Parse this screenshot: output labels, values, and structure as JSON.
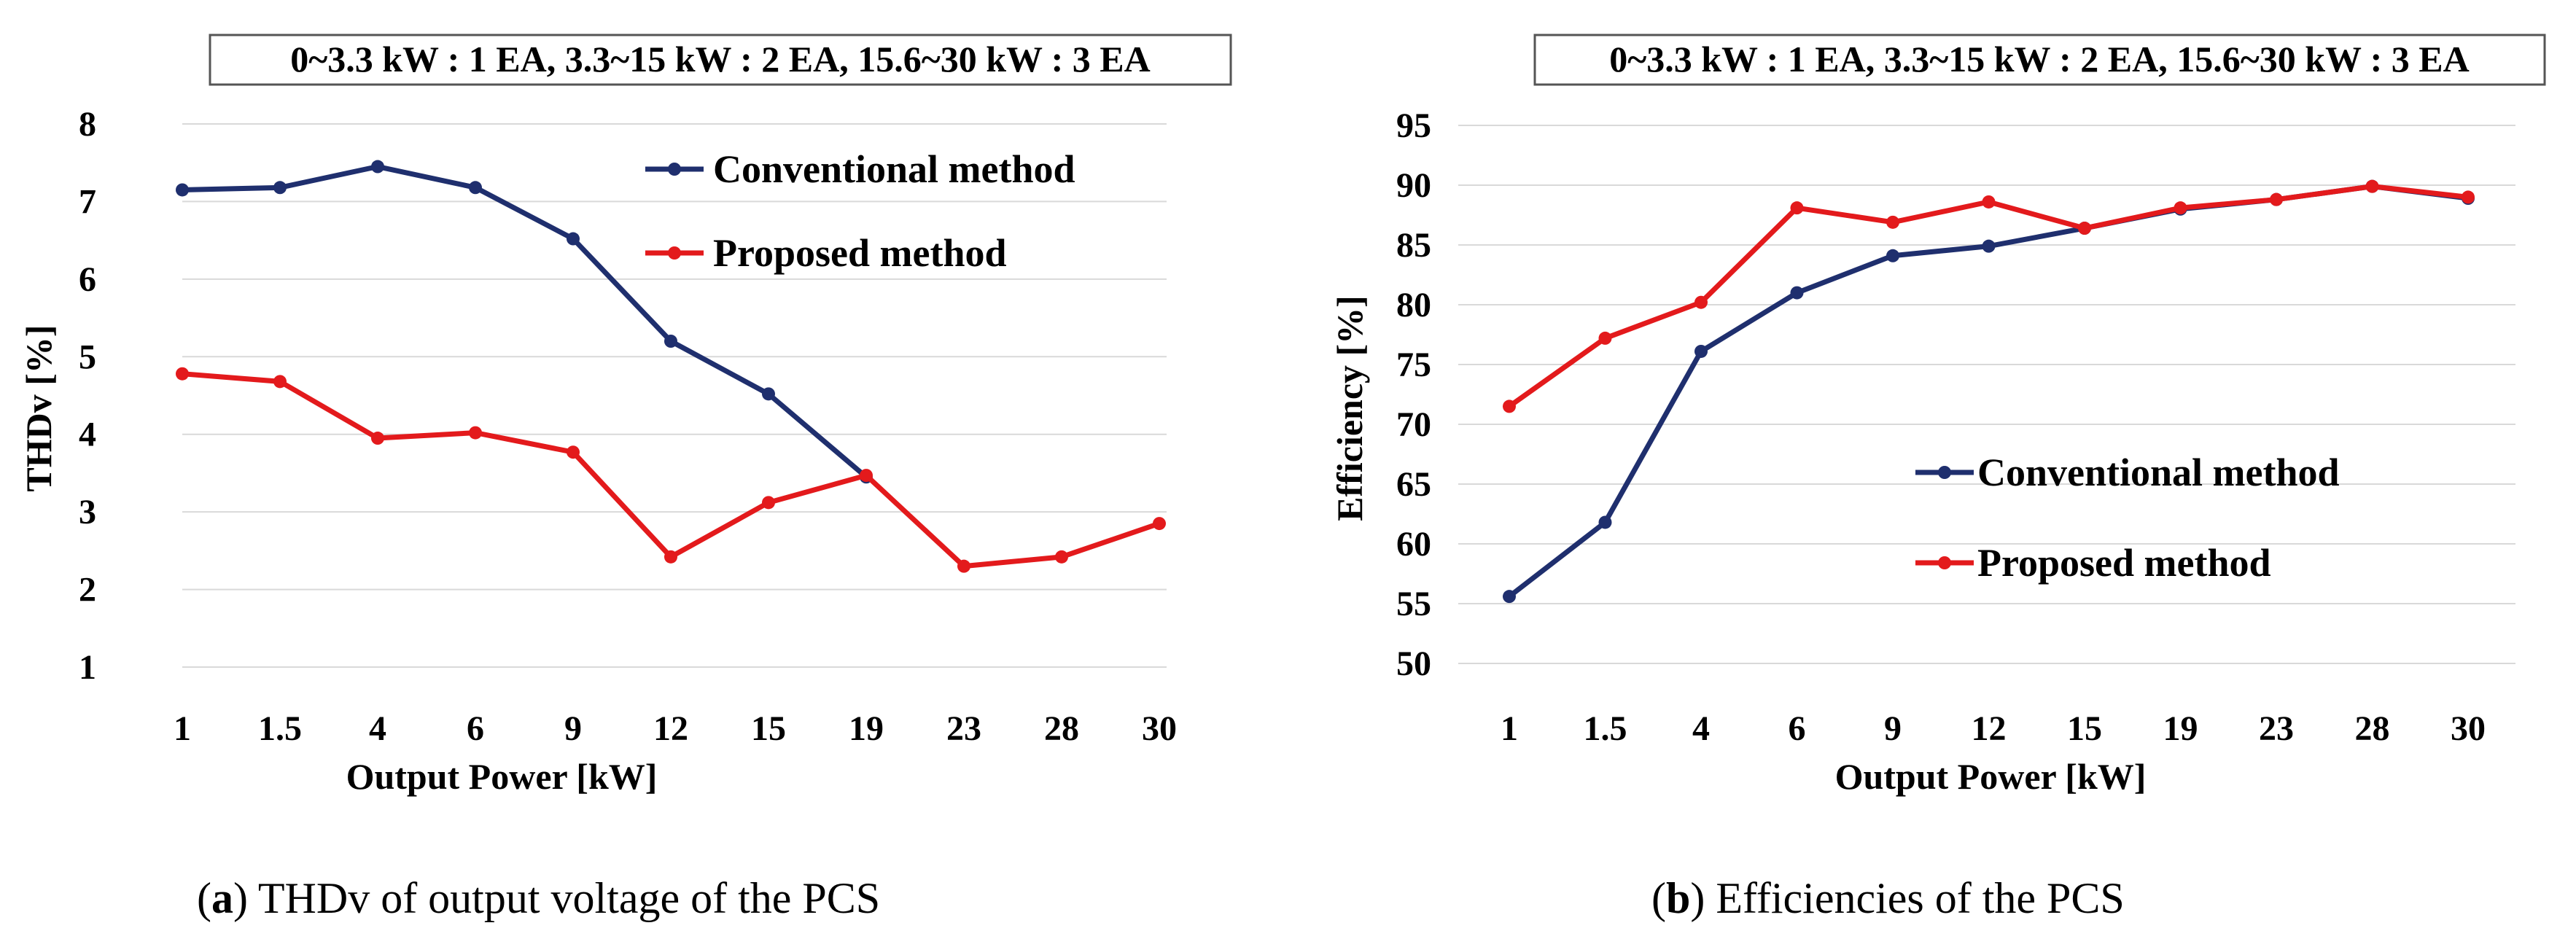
{
  "chart_data": [
    {
      "type": "line",
      "panel_tag": "a",
      "title": "0~3.3 kW : 1 EA, 3.3~15 kW : 2 EA, 15.6~30 kW : 3 EA",
      "xlabel": "Output Power [kW]",
      "ylabel": "THDv [%]",
      "caption": "THDv of output voltage of the PCS",
      "categories": [
        "1",
        "1.5",
        "4",
        "6",
        "9",
        "12",
        "15",
        "19",
        "23",
        "28",
        "30"
      ],
      "ylim": [
        1,
        8
      ],
      "yticks": [
        1,
        2,
        3,
        4,
        5,
        6,
        7,
        8
      ],
      "grid": true,
      "legend_position": "top-right",
      "series": [
        {
          "name": "Conventional method",
          "color": "#1f2f6e",
          "values": [
            7.15,
            7.18,
            7.45,
            7.18,
            6.52,
            5.2,
            4.52,
            3.45,
            null,
            null,
            null
          ]
        },
        {
          "name": "Proposed method",
          "color": "#e31a1c",
          "values": [
            4.78,
            4.68,
            3.95,
            4.02,
            3.77,
            2.42,
            3.12,
            3.47,
            2.3,
            2.42,
            2.85
          ]
        }
      ]
    },
    {
      "type": "line",
      "panel_tag": "b",
      "title": "0~3.3 kW : 1 EA, 3.3~15 kW : 2 EA, 15.6~30 kW : 3 EA",
      "xlabel": "Output Power [kW]",
      "ylabel": "Efficiency [%]",
      "caption": "Efficiencies of the PCS",
      "categories": [
        "1",
        "1.5",
        "4",
        "6",
        "9",
        "12",
        "15",
        "19",
        "23",
        "28",
        "30"
      ],
      "ylim": [
        50,
        95
      ],
      "yticks": [
        50,
        55,
        60,
        65,
        70,
        75,
        80,
        85,
        90,
        95
      ],
      "grid": true,
      "legend_position": "center-right",
      "series": [
        {
          "name": "Conventional method",
          "color": "#1f2f6e",
          "values": [
            55.6,
            61.8,
            76.1,
            81.0,
            84.1,
            84.9,
            86.4,
            88.0,
            88.8,
            89.9,
            88.9
          ]
        },
        {
          "name": "Proposed method",
          "color": "#e31a1c",
          "values": [
            71.5,
            77.2,
            80.2,
            88.1,
            86.9,
            88.6,
            86.4,
            88.1,
            88.8,
            89.9,
            89.0
          ]
        }
      ]
    }
  ]
}
